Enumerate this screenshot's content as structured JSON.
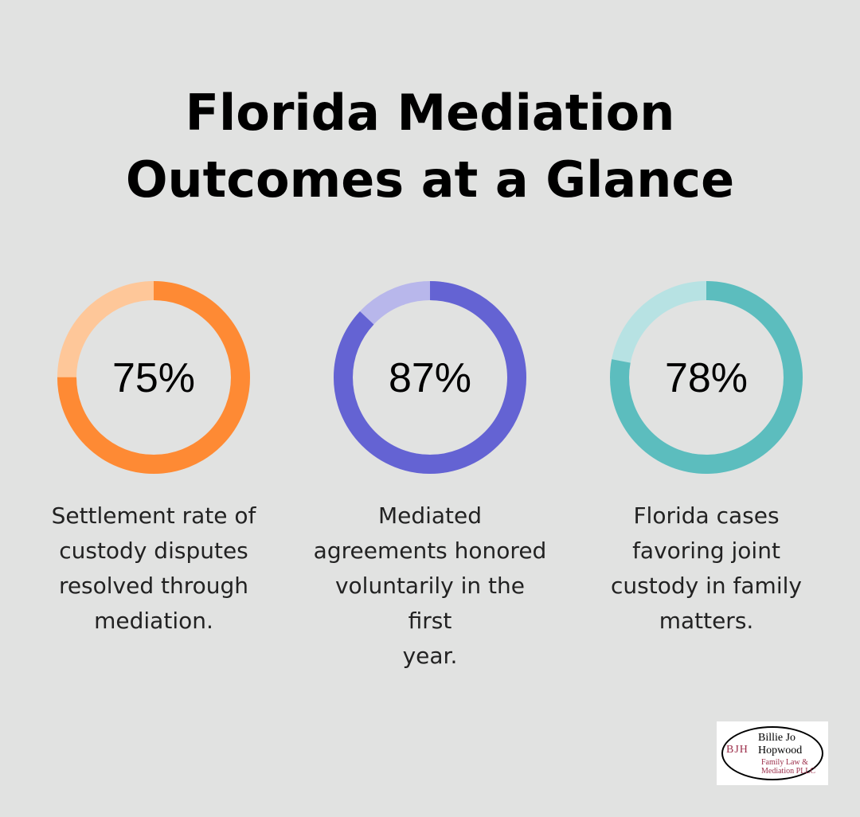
{
  "title": {
    "line1": "Florida Mediation",
    "line2": "Outcomes at a Glance"
  },
  "chart_data": {
    "type": "pie",
    "title": "Florida Mediation Outcomes at a Glance",
    "items": [
      {
        "value": 75,
        "label": "75%",
        "desc_lines": [
          "Settlement rate of",
          "custody disputes",
          "resolved through",
          "mediation."
        ],
        "color": "#fe8a34",
        "track_color": "#fec799"
      },
      {
        "value": 87,
        "label": "87%",
        "desc_lines": [
          "Mediated",
          "agreements honored",
          "voluntarily in the first",
          "year."
        ],
        "color": "#6463d3",
        "track_color": "#b8b7eb"
      },
      {
        "value": 78,
        "label": "78%",
        "desc_lines": [
          "Florida cases",
          "favoring joint",
          "custody in family",
          "matters."
        ],
        "color": "#5cbdbe",
        "track_color": "#b7e2e3"
      }
    ]
  },
  "logo": {
    "monogram": "BJH",
    "line1": "Billie Jo",
    "line2": "Hopwood",
    "line3": "Family Law &",
    "line4": "Mediation PLLC"
  }
}
